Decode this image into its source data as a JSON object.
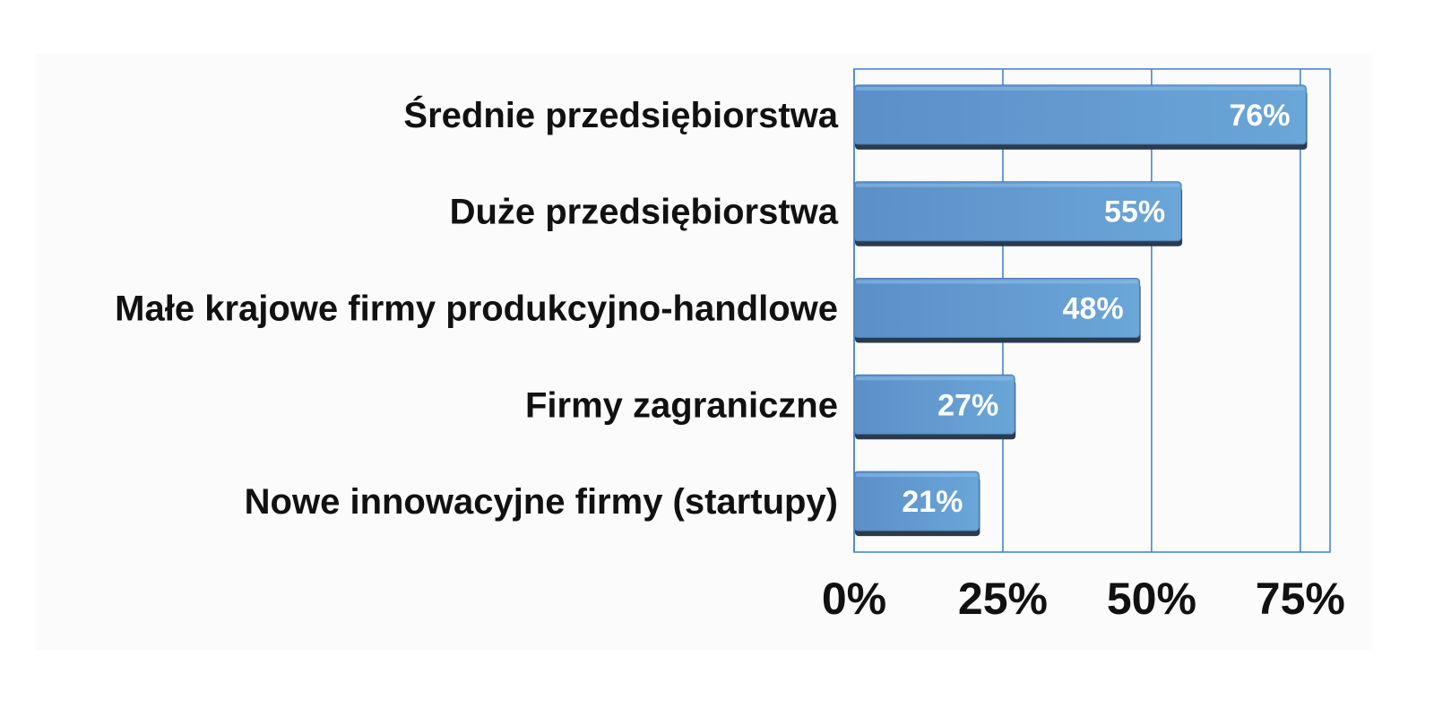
{
  "chart_data": {
    "type": "bar",
    "orientation": "horizontal",
    "categories": [
      "Średnie przedsiębiorstwa",
      "Duże przedsiębiorstwa",
      "Małe krajowe firmy produkcyjno-handlowe",
      "Firmy zagraniczne",
      "Nowe innowacyjne firmy (startupy)"
    ],
    "values": [
      76,
      55,
      48,
      27,
      21
    ],
    "value_labels": [
      "76%",
      "55%",
      "48%",
      "27%",
      "21%"
    ],
    "xlim": [
      0,
      80
    ],
    "xticks": [
      0,
      25,
      50,
      75
    ],
    "xtick_labels": [
      "0%",
      "25%",
      "50%",
      "75%"
    ],
    "grid": "vertical",
    "colors": {
      "bar": "#5b8fc8",
      "bar_light": "#6aa6d8",
      "bar_shadow": "#2b3a4d",
      "grid": "#3b7fcf"
    }
  }
}
